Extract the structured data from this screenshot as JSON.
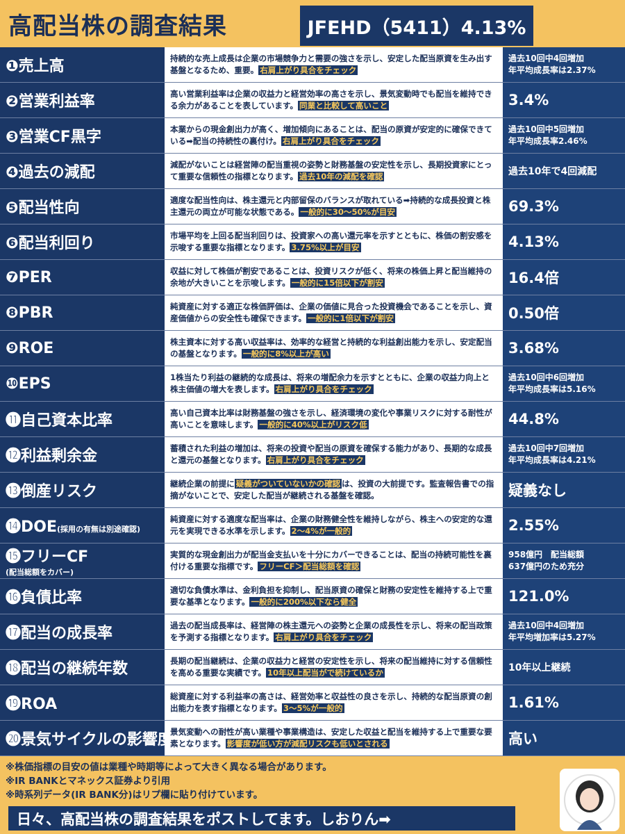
{
  "header": {
    "title": "高配当株の調査結果",
    "ticker": "JFEHD（5411）4.13%"
  },
  "rows": [
    {
      "num": "❶",
      "label": "売上高",
      "segments": [
        {
          "text": "持続的な売上成長は企業の市場競争力と需要の強さを示し、安定した配当原資を生み出す基盤となるため、重要。"
        },
        {
          "text": "右肩上がり具合をチェック",
          "highlight": true
        }
      ],
      "value": [
        "過去10回中4回増加",
        "年平均成長率は2.37%"
      ]
    },
    {
      "num": "❷",
      "label": "営業利益率",
      "segments": [
        {
          "text": "高い営業利益率は企業の収益力と経営効率の高さを示し、景気変動時でも配当を維持できる余力があることを表しています。"
        },
        {
          "text": "同業と比較して高いこと",
          "highlight": true
        }
      ],
      "value": [
        "3.4%"
      ]
    },
    {
      "num": "❸",
      "label": "営業CF黒字",
      "segments": [
        {
          "text": "本業からの現金創出力が高く、増加傾向にあることは、配当の原資が安定的に確保できている➡配当の持続性の裏付け。"
        },
        {
          "text": "右肩上がり具合をチェック",
          "highlight": true
        }
      ],
      "value": [
        "過去10回中5回増加",
        "年平均成長率2.46%"
      ]
    },
    {
      "num": "❹",
      "label": "過去の減配",
      "segments": [
        {
          "text": "減配がないことは経営陣の配当重視の姿勢と財務基盤の安定性を示し、長期投資家にとって重要な信頼性の指標となります。"
        },
        {
          "text": "過去10年の減配を確認",
          "highlight": true
        }
      ],
      "value": [
        "過去10年で4回減配"
      ]
    },
    {
      "num": "❺",
      "label": "配当性向",
      "segments": [
        {
          "text": "適度な配当性向は、株主還元と内部留保のバランスが取れている➡持続的な成長投資と株主還元の両立が可能な状態である。"
        },
        {
          "text": "一般的に30～50%が目安",
          "highlight": true
        }
      ],
      "value": [
        "69.3%"
      ]
    },
    {
      "num": "❻",
      "label": "配当利回り",
      "segments": [
        {
          "text": "市場平均を上回る配当利回りは、投資家への高い還元率を示すとともに、株価の割安感を示唆する重要な指標となります。"
        },
        {
          "text": "3.75%以上が目安",
          "highlight": true
        }
      ],
      "value": [
        "4.13%"
      ]
    },
    {
      "num": "❼",
      "label": "PER",
      "segments": [
        {
          "text": "収益に対して株価が割安であることは、投資リスクが低く、将来の株価上昇と配当維持の余地が大きいことを示唆します。"
        },
        {
          "text": "一般的に15倍以下が割安",
          "highlight": true
        }
      ],
      "value": [
        "16.4倍"
      ]
    },
    {
      "num": "❽",
      "label": "PBR",
      "segments": [
        {
          "text": "純資産に対する適正な株価評価は、企業の価値に見合った投資機会であることを示し、資産価値からの安全性も確保できます。"
        },
        {
          "text": "一般的に1倍以下が割安",
          "highlight": true
        }
      ],
      "value": [
        "0.50倍"
      ]
    },
    {
      "num": "❾",
      "label": "ROE",
      "segments": [
        {
          "text": "株主資本に対する高い収益率は、効率的な経営と持続的な利益創出能力を示し、安定配当の基盤となります。"
        },
        {
          "text": "一般的に8%以上が高い",
          "highlight": true
        }
      ],
      "value": [
        "3.68%"
      ]
    },
    {
      "num": "❿",
      "label": "EPS",
      "segments": [
        {
          "text": "1株当たり利益の継続的な成長は、将来の増配余力を示すとともに、企業の収益力向上と株主価値の増大を表します。"
        },
        {
          "text": "右肩上がり具合をチェック",
          "highlight": true
        }
      ],
      "value": [
        "過去10回中6回増加",
        "年平均成長率は5.16%"
      ]
    },
    {
      "num": "⓫",
      "label": "自己資本比率",
      "segments": [
        {
          "text": "高い自己資本比率は財務基盤の強さを示し、経済環境の変化や事業リスクに対する耐性が高いことを意味します。"
        },
        {
          "text": "一般的に40%以上がリスク低",
          "highlight": true
        }
      ],
      "value": [
        "44.8%"
      ]
    },
    {
      "num": "⓬",
      "label": "利益剰余金",
      "segments": [
        {
          "text": "蓄積された利益の増加は、将来の投資や配当の原資を確保する能力があり、長期的な成長と還元の基盤となります。"
        },
        {
          "text": "右肩上がり具合をチェック",
          "highlight": true
        }
      ],
      "value": [
        "過去10回中7回増加",
        "年平均成長率は4.21%"
      ]
    },
    {
      "num": "⓭",
      "label": "倒産リスク",
      "segments": [
        {
          "text": "継続企業の前提に"
        },
        {
          "text": "疑義がついていないかの確認",
          "highlight": true
        },
        {
          "text": "は、投資の大前提です。監査報告書での指摘がないことで、安定した配当が継続される基盤を確認。"
        }
      ],
      "value": [
        "疑義なし"
      ]
    },
    {
      "num": "⓮",
      "label": "DOE",
      "sub": "(採用の有無は別途確認)",
      "segments": [
        {
          "text": "純資産に対する適度な配当率は、企業の財務健全性を維持しながら、株主への安定的な還元を実現できる水準を示します。"
        },
        {
          "text": "2～4%が一般的",
          "highlight": true
        }
      ],
      "value": [
        "2.55%"
      ]
    },
    {
      "num": "⓯",
      "label": "フリーCF",
      "sub": "(配当総額をカバー)",
      "subBreak": true,
      "segments": [
        {
          "text": "実質的な現金創出力が配当金支払いを十分にカバーできることは、配当の持続可能性を裏付ける重要な指標です。"
        },
        {
          "text": "フリーCF＞配当総額を確認",
          "highlight": true
        }
      ],
      "value": [
        "958億円　配当総額",
        "637億円のため充分"
      ]
    },
    {
      "num": "⓰",
      "label": "負債比率",
      "segments": [
        {
          "text": "適切な負債水準は、金利負担を抑制し、配当原資の確保と財務の安定性を維持する上で重要な基準となります。"
        },
        {
          "text": "一般的に200%以下なら健全",
          "highlight": true
        }
      ],
      "value": [
        "121.0%"
      ]
    },
    {
      "num": "⓱",
      "label": "配当の成長率",
      "segments": [
        {
          "text": "過去の配当成長率は、経営陣の株主還元への姿勢と企業の成長性を示し、将来の配当政策を予測する指標となります。"
        },
        {
          "text": "右肩上がり具合をチェック",
          "highlight": true
        }
      ],
      "value": [
        "過去10回中4回増加",
        "年平均増加率は5.27%"
      ]
    },
    {
      "num": "⓲",
      "label": "配当の継続年数",
      "segments": [
        {
          "text": "長期の配当継続は、企業の収益力と経営の安定性を示し、将来の配当維持に対する信頼性を高める重要な実績です。"
        },
        {
          "text": "10年以上配当がで続けているか",
          "highlight": true
        }
      ],
      "value": [
        "10年以上継続"
      ]
    },
    {
      "num": "⓳",
      "label": "ROA",
      "segments": [
        {
          "text": "総資産に対する利益率の高さは、経営効率と収益性の良さを示し、持続的な配当原資の創出能力を表す指標となります。"
        },
        {
          "text": "3～5%が一般的",
          "highlight": true
        }
      ],
      "value": [
        "1.61%"
      ]
    },
    {
      "num": "⓴",
      "label": "景気サイクルの影響度",
      "segments": [
        {
          "text": "景気変動への耐性が高い業種や事業構造は、安定した収益と配当を維持する上で重要な要素となります。"
        },
        {
          "text": "影響度が低い方が減配リスクも低いとされる",
          "highlight": true
        }
      ],
      "value": [
        "高い"
      ]
    }
  ],
  "notes": [
    "※株価指標の目安の値は業種や時期等によって大きく異なる場合があります。",
    "※IR BANKとマネックス証券より引用",
    "※時系列データ(IR BANK分)はリプ欄に貼り付けています。"
  ],
  "banner": "日々、高配当株の調査結果をポストしてます。しおりん➡"
}
